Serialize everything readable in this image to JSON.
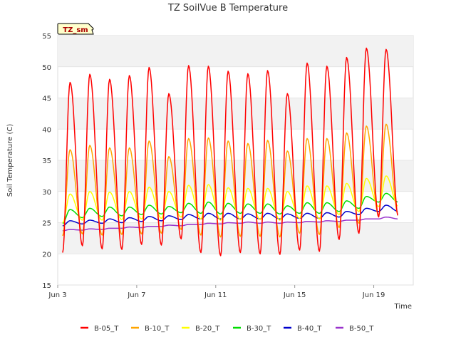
{
  "chart_data": {
    "type": "line",
    "title": "TZ SoilVue B Temperature",
    "xlabel": "Time",
    "ylabel": "Soil Temperature (C)",
    "badge": "TZ_sm",
    "ylim": [
      15,
      55
    ],
    "xlim": [
      "2024-06-03",
      "2024-06-21"
    ],
    "grid": "horizontal bands",
    "legend_position": "bottom",
    "yticks": [
      "15",
      "20",
      "25",
      "30",
      "35",
      "40",
      "45",
      "50",
      "55"
    ],
    "xticks": [
      {
        "date": "2024-06-03",
        "label": "Jun 3"
      },
      {
        "date": "2024-06-07",
        "label": "Jun 7"
      },
      {
        "date": "2024-06-11",
        "label": "Jun 11"
      },
      {
        "date": "2024-06-15",
        "label": "Jun 15"
      },
      {
        "date": "2024-06-19",
        "label": "Jun 19"
      }
    ],
    "series": [
      {
        "name": "B-05_T",
        "color": "#ff0000",
        "x_start": "2024-06-03 06:00",
        "x_end": "2024-06-20 18:00",
        "daily_min": [
          20.2,
          21.3,
          20.8,
          20.7,
          21.5,
          21.4,
          22.4,
          20.2,
          19.7,
          20.2,
          20.0,
          19.9,
          20.6,
          20.4,
          22.3,
          23.3,
          25.9
        ],
        "daily_max": [
          47.5,
          48.8,
          48.0,
          48.6,
          49.9,
          45.7,
          50.2,
          50.1,
          49.3,
          48.9,
          49.4,
          45.7,
          50.6,
          50.1,
          51.5,
          53.0,
          52.8
        ]
      },
      {
        "name": "B-10_T",
        "color": "#ffa500",
        "x_start": "2024-06-03 06:00",
        "x_end": "2024-06-20 18:00",
        "daily_min": [
          22.9,
          23.2,
          23.0,
          23.1,
          23.2,
          23.3,
          23.9,
          23.0,
          22.7,
          22.8,
          22.8,
          22.7,
          23.3,
          23.1,
          24.2,
          24.9,
          26.2
        ],
        "daily_max": [
          36.7,
          37.4,
          37.0,
          37.0,
          38.1,
          35.6,
          38.5,
          38.6,
          38.1,
          37.7,
          38.2,
          36.5,
          38.5,
          38.5,
          39.4,
          40.5,
          40.8
        ]
      },
      {
        "name": "B-20_T",
        "color": "#ffff00",
        "x_start": "2024-06-03 06:00",
        "x_end": "2024-06-20 18:00",
        "daily_min": [
          25.0,
          25.4,
          25.4,
          25.5,
          25.6,
          25.7,
          25.9,
          25.6,
          25.4,
          25.5,
          25.5,
          25.4,
          25.7,
          25.6,
          26.3,
          26.8,
          27.6
        ],
        "daily_max": [
          29.6,
          30.0,
          29.9,
          30.0,
          30.7,
          30.0,
          31.0,
          31.1,
          30.6,
          30.5,
          30.5,
          30.0,
          30.9,
          30.9,
          31.3,
          32.1,
          32.5
        ]
      },
      {
        "name": "B-30_T",
        "color": "#00dd00",
        "x_start": "2024-06-03 06:00",
        "x_end": "2024-06-20 18:00",
        "daily_min": [
          24.9,
          25.8,
          26.0,
          26.1,
          26.3,
          26.4,
          26.6,
          26.5,
          26.4,
          26.5,
          26.5,
          26.4,
          26.5,
          26.5,
          26.8,
          27.3,
          28.3
        ],
        "daily_max": [
          27.1,
          27.3,
          27.5,
          27.5,
          27.8,
          27.6,
          28.1,
          28.3,
          28.1,
          28.0,
          28.0,
          27.7,
          28.2,
          28.2,
          28.5,
          29.2,
          29.7
        ]
      },
      {
        "name": "B-40_T",
        "color": "#0000cc",
        "x_start": "2024-06-03 06:00",
        "x_end": "2024-06-20 18:00",
        "daily_min": [
          24.5,
          24.8,
          24.9,
          25.0,
          25.2,
          25.3,
          25.5,
          25.6,
          25.6,
          25.6,
          25.6,
          25.6,
          25.7,
          25.7,
          25.9,
          26.3,
          26.8
        ],
        "daily_max": [
          25.3,
          25.4,
          25.6,
          25.8,
          26.0,
          26.1,
          26.3,
          26.5,
          26.5,
          26.4,
          26.5,
          26.4,
          26.5,
          26.6,
          26.8,
          27.3,
          27.8
        ]
      },
      {
        "name": "B-50_T",
        "color": "#9933cc",
        "x_start": "2024-06-03 06:00",
        "x_end": "2024-06-20 18:00",
        "daily_min": [
          23.7,
          23.8,
          23.9,
          24.1,
          24.2,
          24.4,
          24.5,
          24.7,
          24.8,
          24.9,
          24.9,
          24.9,
          25.0,
          25.1,
          25.2,
          25.4,
          25.6
        ],
        "daily_max": [
          23.9,
          24.0,
          24.1,
          24.3,
          24.4,
          24.6,
          24.7,
          24.9,
          25.0,
          25.1,
          25.1,
          25.1,
          25.2,
          25.3,
          25.4,
          25.6,
          25.9
        ]
      }
    ]
  }
}
